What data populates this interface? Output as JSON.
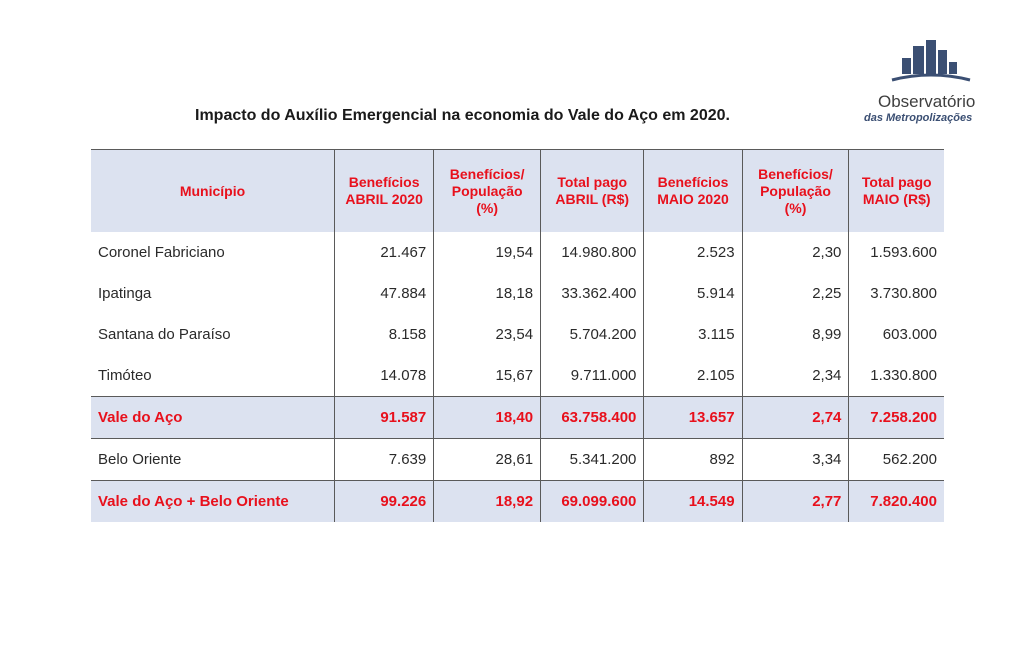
{
  "title": "Impacto do Auxílio Emergencial na economia do Vale do Aço em 2020.",
  "logo": {
    "name": "Observatório",
    "subtitle": "das Metropolizações",
    "colors": {
      "bars": "#3b4f73",
      "base": "#3b4f73"
    }
  },
  "table": {
    "headers": [
      "Município",
      "Benefícios ABRIL 2020",
      "Benefícios/ População (%)",
      "Total pago ABRIL (R$)",
      "Benefícios MAIO 2020",
      "Benefícios/ População (%)",
      "Total pago MAIO (R$)"
    ],
    "rows": [
      {
        "type": "normal",
        "cells": [
          "Coronel Fabriciano",
          "21.467",
          "19,54",
          "14.980.800",
          "2.523",
          "2,30",
          "1.593.600"
        ]
      },
      {
        "type": "normal",
        "cells": [
          "Ipatinga",
          "47.884",
          "18,18",
          "33.362.400",
          "5.914",
          "2,25",
          "3.730.800"
        ]
      },
      {
        "type": "normal",
        "cells": [
          "Santana do Paraíso",
          "8.158",
          "23,54",
          "5.704.200",
          "3.115",
          "8,99",
          "603.000"
        ]
      },
      {
        "type": "normal",
        "cells": [
          "Timóteo",
          "14.078",
          "15,67",
          "9.711.000",
          "2.105",
          "2,34",
          "1.330.800"
        ]
      },
      {
        "type": "total",
        "cells": [
          "Vale do Aço",
          "91.587",
          "18,40",
          "63.758.400",
          "13.657",
          "2,74",
          "7.258.200"
        ]
      },
      {
        "type": "normal",
        "cells": [
          "Belo Oriente",
          "7.639",
          "28,61",
          "5.341.200",
          "892",
          "3,34",
          "562.200"
        ]
      },
      {
        "type": "total",
        "cells": [
          "Vale do Aço + Belo Oriente",
          "99.226",
          "18,92",
          "69.099.600",
          "14.549",
          "2,77",
          "7.820.400"
        ]
      }
    ]
  },
  "colors": {
    "header_bg": "#dce2f0",
    "highlight_text": "#e8101c",
    "body_text": "#2a2a2a"
  }
}
